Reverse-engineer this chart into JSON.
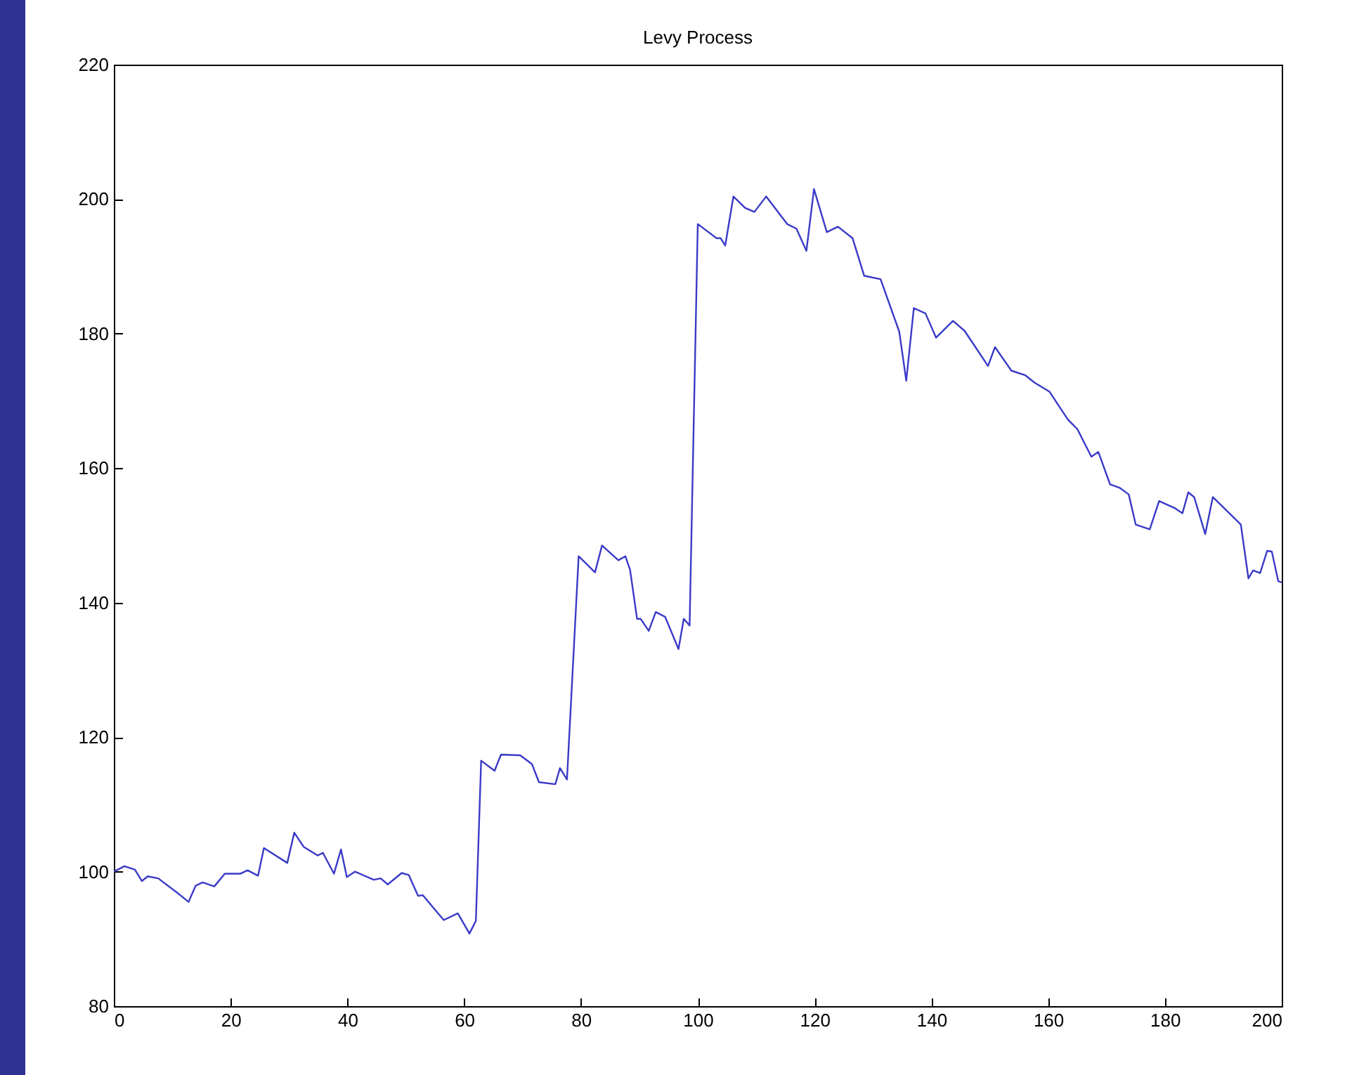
{
  "chart_data": {
    "type": "line",
    "title": "Levy Process",
    "x": [
      0,
      1.8,
      3.6,
      4.8,
      5.8,
      7.6,
      10.8,
      12.8,
      14,
      15.2,
      17.2,
      19,
      21.7,
      22.9,
      24.7,
      25.7,
      29.7,
      30.9,
      32.5,
      34.9,
      35.8,
      37.7,
      38.9,
      39.9,
      41.3,
      44.5,
      45.7,
      46.9,
      49.3,
      50.5,
      52.1,
      52.9,
      56.5,
      58.9,
      60.9,
      62,
      62.9,
      65.2,
      66.3,
      69.6,
      71.6,
      72.8,
      75.6,
      76.4,
      77.6,
      79.6,
      82.4,
      83.6,
      86.4,
      87.6,
      88.4,
      89.6,
      90.2,
      91.6,
      92.8,
      94.4,
      96.7,
      97.6,
      98.6,
      100,
      103.2,
      103.9,
      104.7,
      106.1,
      108.1,
      109.7,
      111.7,
      115.3,
      116.9,
      118.6,
      119.9,
      122.1,
      124,
      126.5,
      128.5,
      131.3,
      134.5,
      135.7,
      137,
      139,
      140.8,
      143.7,
      145.7,
      149.7,
      150.9,
      153.7,
      156.1,
      157.7,
      160.2,
      163.4,
      165,
      167.4,
      168.6,
      170.6,
      172.2,
      173.8,
      175,
      177.4,
      179,
      181.8,
      183,
      184,
      185,
      186.9,
      188.2,
      193,
      194.3,
      195.1,
      196.3,
      197.5,
      198.3,
      199.4,
      200
    ],
    "series": [
      {
        "color": "#3a3ac8",
        "values": [
          100,
          100.8,
          100.3,
          98.6,
          99.3,
          99,
          96.9,
          95.5,
          97.9,
          98.4,
          97.8,
          99.7,
          99.7,
          100.2,
          99.4,
          103.5,
          101.3,
          105.8,
          103.7,
          102.4,
          102.8,
          99.7,
          103.3,
          99.2,
          100,
          98.8,
          99,
          98.1,
          99.8,
          99.5,
          96.4,
          96.5,
          92.8,
          93.8,
          90.8,
          92.7,
          116.5,
          115,
          117.4,
          117.3,
          116,
          113.3,
          113,
          115.4,
          113.7,
          146.9,
          144.5,
          148.5,
          146.3,
          146.9,
          144.9,
          137.6,
          137.6,
          135.8,
          138.6,
          137.9,
          133.1,
          137.6,
          136.6,
          196.3,
          194.2,
          194.2,
          193.1,
          200.4,
          198.7,
          198.1,
          200.4,
          196.3,
          195.6,
          192.3,
          201.5,
          195.1,
          195.9,
          194.2,
          188.6,
          188.1,
          180.3,
          173,
          183.8,
          183,
          179.4,
          181.9,
          180.4,
          175.2,
          178,
          174.5,
          173.8,
          172.7,
          171.4,
          167.2,
          165.8,
          161.7,
          162.4,
          157.6,
          157.1,
          156.1,
          151.6,
          150.9,
          155.1,
          154,
          153.3,
          156.4,
          155.7,
          150.2,
          155.7,
          151.6,
          143.6,
          144.8,
          144.4,
          147.7,
          147.6,
          143.2,
          143
        ]
      }
    ],
    "xlim": [
      0,
      200
    ],
    "xticks": [
      0,
      20,
      40,
      60,
      80,
      100,
      120,
      140,
      160,
      180,
      200
    ],
    "ylim": [
      80,
      220
    ],
    "yticks": [
      80,
      100,
      120,
      140,
      160,
      180,
      200,
      220
    ]
  }
}
